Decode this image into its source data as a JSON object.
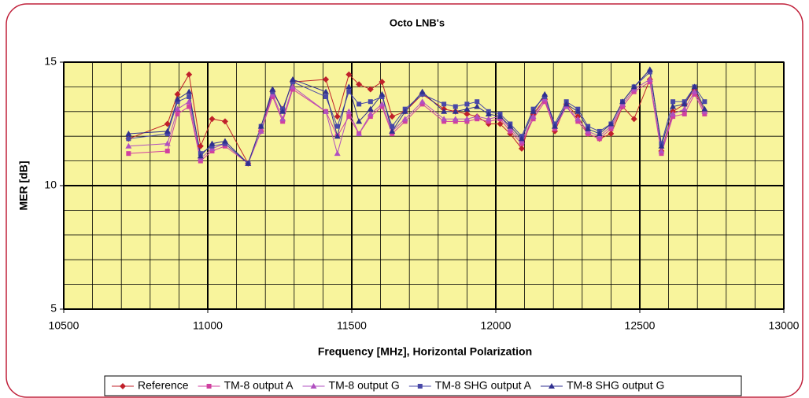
{
  "chart_data": {
    "type": "line",
    "title": "Octo LNB's",
    "x_label": "Frequency [MHz], Horizontal Polarization",
    "y_label": "MER [dB]",
    "x": [
      10725,
      10860,
      10895,
      10935,
      10975,
      11015,
      11060,
      11140,
      11185,
      11225,
      11260,
      11295,
      11410,
      11450,
      11490,
      11525,
      11565,
      11605,
      11640,
      11685,
      11745,
      11820,
      11860,
      11900,
      11935,
      11975,
      12015,
      12050,
      12090,
      12130,
      12170,
      12205,
      12245,
      12285,
      12320,
      12360,
      12400,
      12440,
      12480,
      12535,
      12575,
      12615,
      12655,
      12690,
      12725
    ],
    "series": [
      {
        "name": "Reference",
        "color": "#c0202a",
        "marker": "diamond",
        "values": [
          11.9,
          12.5,
          13.7,
          14.5,
          11.6,
          12.7,
          12.6,
          10.9,
          12.2,
          13.8,
          13.1,
          14.2,
          14.3,
          12.8,
          14.5,
          14.1,
          13.9,
          14.2,
          12.8,
          13.0,
          13.7,
          13.1,
          13.0,
          12.9,
          12.8,
          12.5,
          12.5,
          12.1,
          11.5,
          12.9,
          13.5,
          12.2,
          13.3,
          12.8,
          12.1,
          11.9,
          12.1,
          13.2,
          12.7,
          14.3,
          11.4,
          13.0,
          13.3,
          13.9,
          13.0
        ]
      },
      {
        "name": "TM-8 output A",
        "color": "#d040a0",
        "marker": "square",
        "values": [
          11.3,
          11.4,
          12.9,
          13.2,
          11.0,
          11.4,
          11.6,
          10.9,
          12.2,
          13.6,
          12.6,
          13.9,
          13.0,
          12.0,
          12.8,
          12.1,
          12.8,
          13.2,
          12.1,
          12.6,
          13.3,
          12.6,
          12.6,
          12.6,
          12.7,
          12.6,
          12.7,
          12.2,
          11.7,
          12.7,
          13.4,
          12.3,
          13.2,
          12.6,
          12.1,
          11.9,
          12.3,
          13.2,
          13.8,
          14.2,
          11.3,
          12.8,
          12.9,
          13.7,
          12.9
        ]
      },
      {
        "name": "TM-8 output G",
        "color": "#b050c0",
        "marker": "triangle",
        "values": [
          11.6,
          11.7,
          13.1,
          13.4,
          11.1,
          11.5,
          11.7,
          10.9,
          12.2,
          13.7,
          12.7,
          14.0,
          13.0,
          11.3,
          13.0,
          12.1,
          12.9,
          13.3,
          12.2,
          12.7,
          13.4,
          12.7,
          12.7,
          12.7,
          12.8,
          12.7,
          12.8,
          12.3,
          11.8,
          12.8,
          13.5,
          12.4,
          13.2,
          12.7,
          12.2,
          12.0,
          12.4,
          13.3,
          13.9,
          14.3,
          11.4,
          12.9,
          13.1,
          13.8,
          13.0
        ]
      },
      {
        "name": "TM-8 SHG output A",
        "color": "#4848a8",
        "marker": "square",
        "values": [
          11.9,
          12.1,
          13.4,
          13.6,
          11.3,
          11.6,
          11.7,
          10.9,
          12.4,
          13.8,
          13.1,
          14.2,
          13.6,
          12.4,
          13.8,
          13.3,
          13.4,
          13.6,
          12.4,
          13.1,
          13.7,
          13.3,
          13.2,
          13.3,
          13.4,
          13.0,
          12.9,
          12.5,
          12.0,
          13.1,
          13.6,
          12.5,
          13.4,
          13.1,
          12.4,
          12.2,
          12.5,
          13.4,
          14.0,
          14.6,
          11.7,
          13.4,
          13.4,
          14.0,
          13.4
        ]
      },
      {
        "name": "TM-8 SHG output G",
        "color": "#303090",
        "marker": "triangle",
        "values": [
          12.1,
          12.2,
          13.5,
          13.8,
          11.2,
          11.7,
          11.8,
          10.9,
          12.4,
          13.9,
          13.0,
          14.3,
          13.8,
          12.0,
          14.0,
          12.6,
          13.1,
          13.7,
          12.2,
          13.0,
          13.8,
          13.0,
          13.0,
          13.1,
          13.2,
          12.9,
          12.8,
          12.4,
          11.9,
          13.0,
          13.7,
          12.4,
          13.3,
          13.0,
          12.3,
          12.1,
          12.5,
          13.4,
          14.0,
          14.7,
          11.6,
          13.2,
          13.3,
          14.0,
          13.1
        ]
      }
    ],
    "xlim": [
      10500,
      13000
    ],
    "xticks": [
      10500,
      11000,
      11500,
      12000,
      12500,
      13000
    ],
    "ylim": [
      5,
      15
    ],
    "yticks": [
      5,
      10,
      15
    ],
    "grid": true,
    "minor_grid": {
      "x": 100,
      "y": 1
    },
    "plot_background": "#f8f49c",
    "legend": "bottom"
  }
}
